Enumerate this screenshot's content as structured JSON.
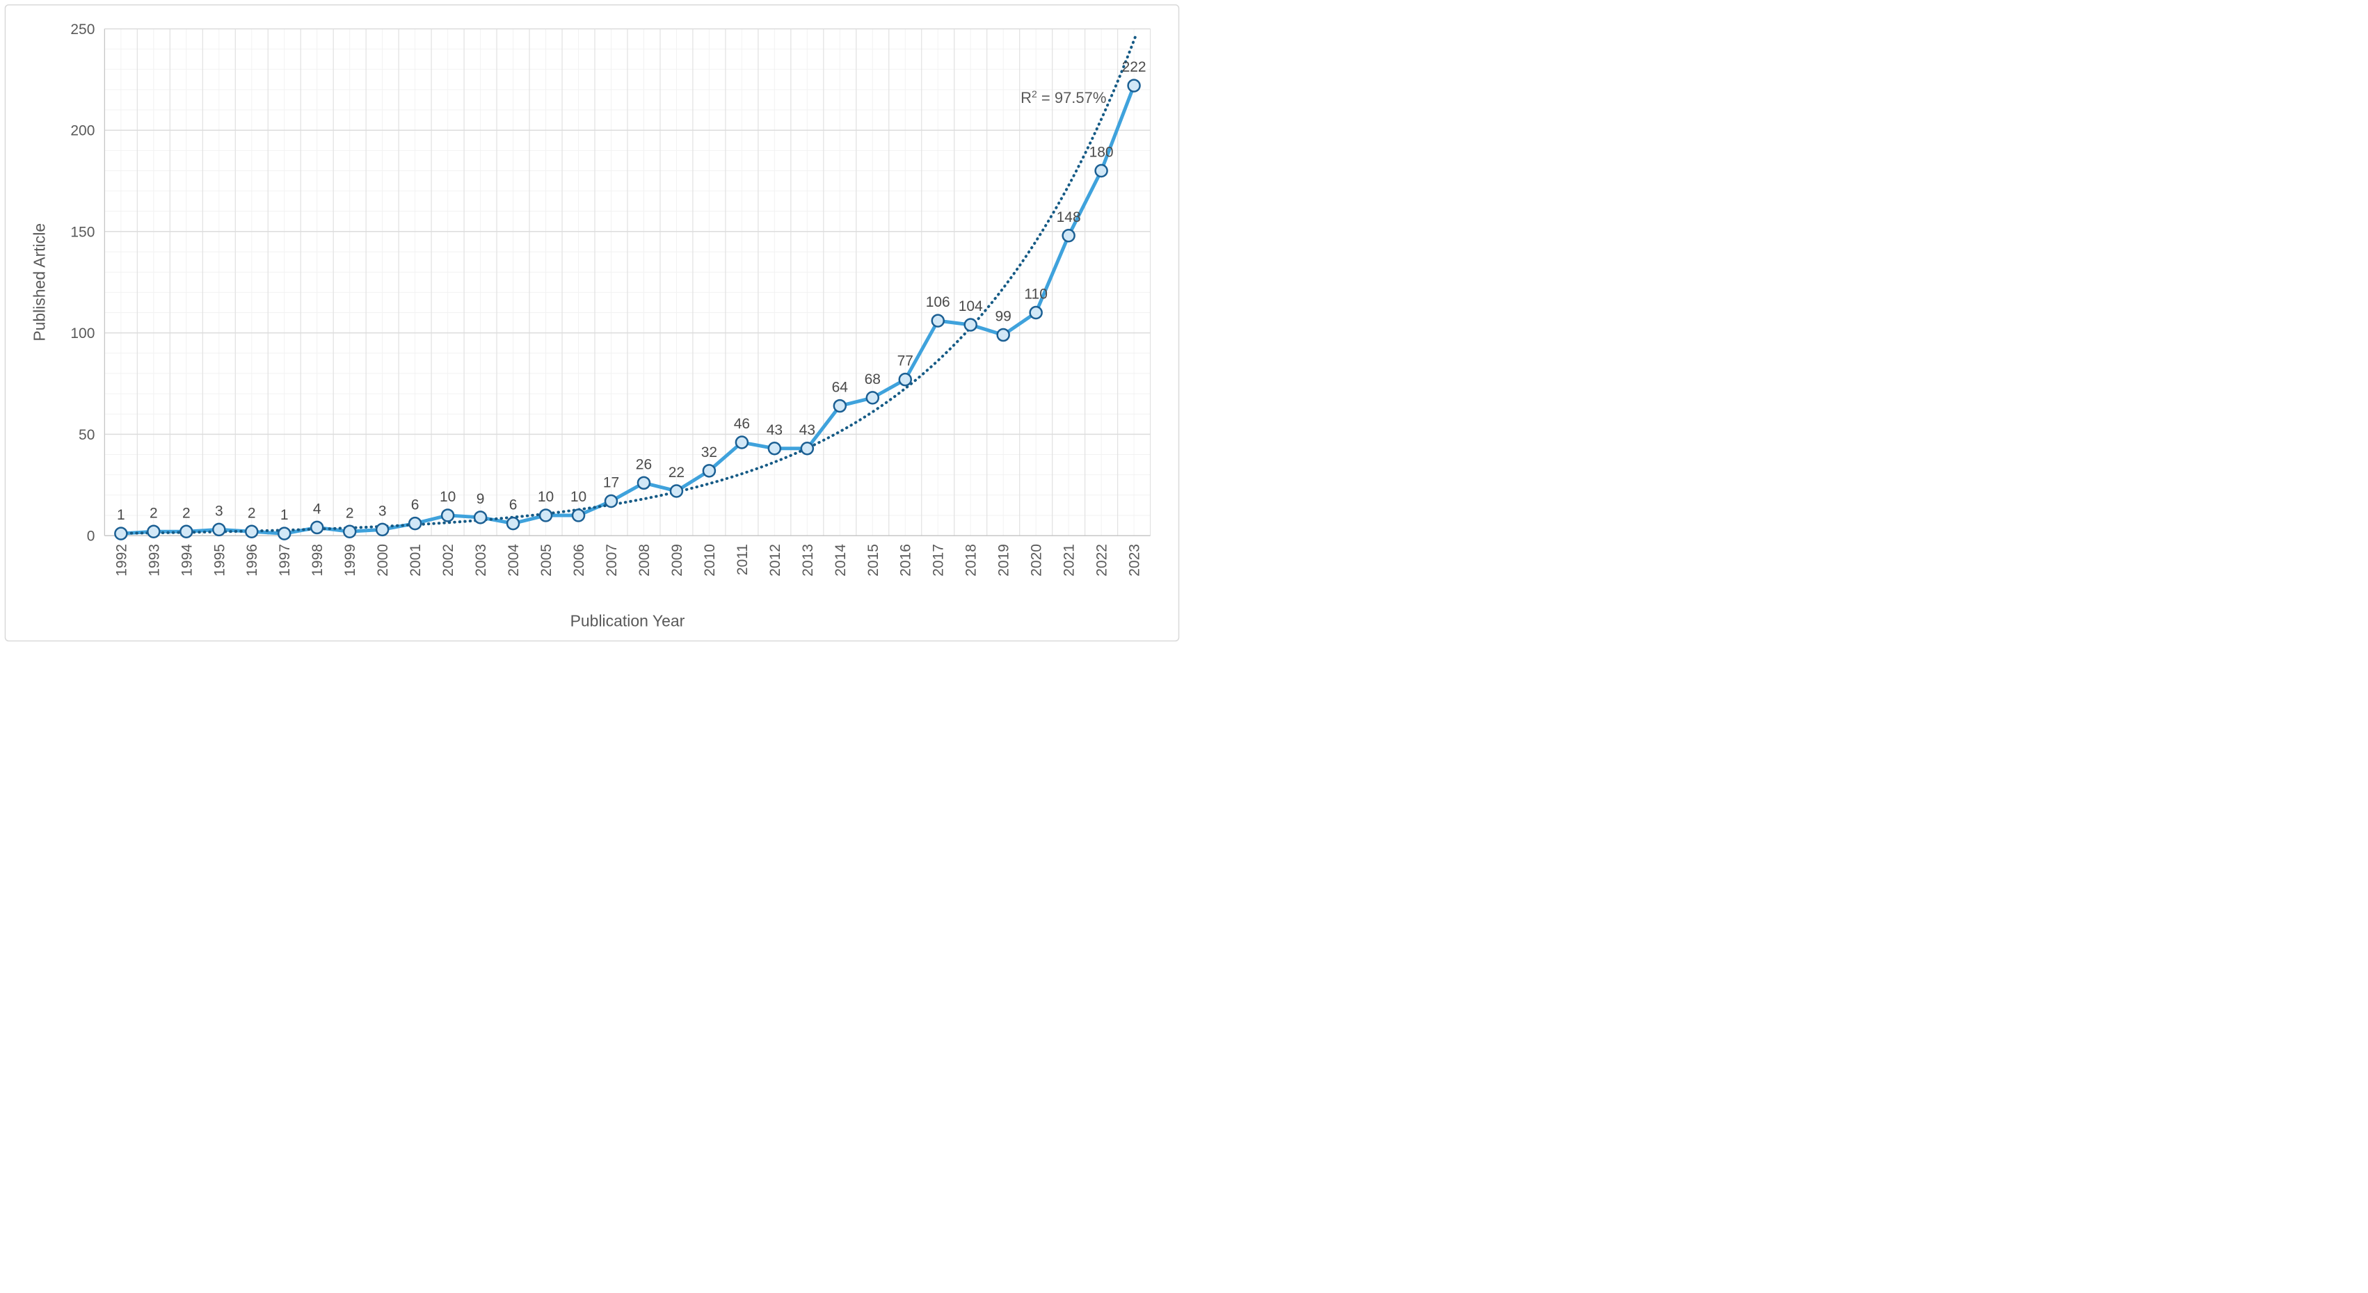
{
  "chart_data": {
    "type": "line",
    "title": "",
    "xlabel": "Publication Year",
    "ylabel": "Published Article",
    "categories": [
      "1992",
      "1993",
      "1994",
      "1995",
      "1996",
      "1997",
      "1998",
      "1999",
      "2000",
      "2001",
      "2002",
      "2003",
      "2004",
      "2005",
      "2006",
      "2007",
      "2008",
      "2009",
      "2010",
      "2011",
      "2012",
      "2013",
      "2014",
      "2015",
      "2016",
      "2017",
      "2018",
      "2019",
      "2020",
      "2021",
      "2022",
      "2023"
    ],
    "values": [
      1,
      2,
      2,
      3,
      2,
      1,
      4,
      2,
      3,
      6,
      10,
      9,
      6,
      10,
      10,
      17,
      26,
      22,
      32,
      46,
      43,
      43,
      64,
      68,
      77,
      106,
      104,
      99,
      110,
      148,
      180,
      222
    ],
    "data_labels": [
      "1",
      "2",
      "2",
      "3",
      "2",
      "1",
      "4",
      "2",
      "3",
      "6",
      "10",
      "9",
      "6",
      "10",
      "10",
      "17",
      "26",
      "22",
      "32",
      "46",
      "43",
      "43",
      "64",
      "68",
      "77",
      "106",
      "104",
      "99",
      "110",
      "148",
      "180",
      "222"
    ],
    "ylim": [
      0,
      250
    ],
    "y_ticks": [
      0,
      50,
      100,
      150,
      200,
      250
    ],
    "y_major_step": 50,
    "y_minor_step": 10,
    "grid": "major+minor",
    "legend_position": "none",
    "trendline": {
      "type": "exponential",
      "a": 1.131,
      "b": 0.1734,
      "annotation": {
        "prefix": "R",
        "sup": "2",
        "rest": " = 97.57%"
      }
    },
    "colors": {
      "series_line": "#3FA2DC",
      "marker_fill": "#D2E8F7",
      "marker_stroke": "#1B5F93",
      "trendline": "#155A85",
      "data_label_text": "#4A4A4A",
      "axis_text": "#595959",
      "grid_minor": "#F2F2F2",
      "grid_major": "#DCDCDC",
      "grid_vertical_major": "#E2E2E2",
      "axis_line": "#C6C6C6",
      "frame_border": "#D9D9D9",
      "background": "#FFFFFF"
    }
  }
}
